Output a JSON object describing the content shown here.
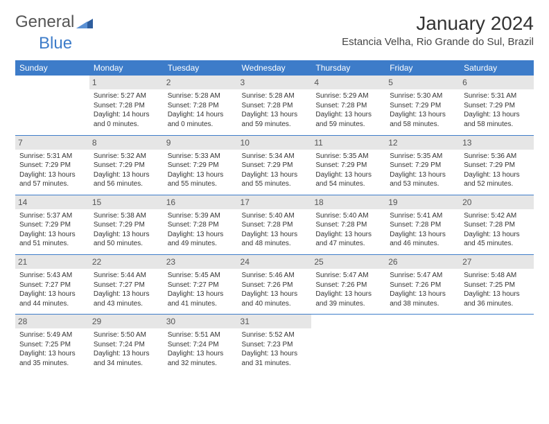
{
  "brand": {
    "text1": "General",
    "text2": "Blue",
    "text_color_1": "#555555",
    "text_color_2": "#3d7cc9",
    "icon_color": "#2e5e9e"
  },
  "title": "January 2024",
  "location": "Estancia Velha, Rio Grande do Sul, Brazil",
  "header_bg": "#3d7cc9",
  "header_fg": "#ffffff",
  "daynum_bg": "#e6e6e6",
  "divider_color": "#3d7cc9",
  "day_names": [
    "Sunday",
    "Monday",
    "Tuesday",
    "Wednesday",
    "Thursday",
    "Friday",
    "Saturday"
  ],
  "weeks": [
    [
      null,
      {
        "n": "1",
        "sr": "5:27 AM",
        "ss": "7:28 PM",
        "dl": "14 hours and 0 minutes."
      },
      {
        "n": "2",
        "sr": "5:28 AM",
        "ss": "7:28 PM",
        "dl": "14 hours and 0 minutes."
      },
      {
        "n": "3",
        "sr": "5:28 AM",
        "ss": "7:28 PM",
        "dl": "13 hours and 59 minutes."
      },
      {
        "n": "4",
        "sr": "5:29 AM",
        "ss": "7:28 PM",
        "dl": "13 hours and 59 minutes."
      },
      {
        "n": "5",
        "sr": "5:30 AM",
        "ss": "7:29 PM",
        "dl": "13 hours and 58 minutes."
      },
      {
        "n": "6",
        "sr": "5:31 AM",
        "ss": "7:29 PM",
        "dl": "13 hours and 58 minutes."
      }
    ],
    [
      {
        "n": "7",
        "sr": "5:31 AM",
        "ss": "7:29 PM",
        "dl": "13 hours and 57 minutes."
      },
      {
        "n": "8",
        "sr": "5:32 AM",
        "ss": "7:29 PM",
        "dl": "13 hours and 56 minutes."
      },
      {
        "n": "9",
        "sr": "5:33 AM",
        "ss": "7:29 PM",
        "dl": "13 hours and 55 minutes."
      },
      {
        "n": "10",
        "sr": "5:34 AM",
        "ss": "7:29 PM",
        "dl": "13 hours and 55 minutes."
      },
      {
        "n": "11",
        "sr": "5:35 AM",
        "ss": "7:29 PM",
        "dl": "13 hours and 54 minutes."
      },
      {
        "n": "12",
        "sr": "5:35 AM",
        "ss": "7:29 PM",
        "dl": "13 hours and 53 minutes."
      },
      {
        "n": "13",
        "sr": "5:36 AM",
        "ss": "7:29 PM",
        "dl": "13 hours and 52 minutes."
      }
    ],
    [
      {
        "n": "14",
        "sr": "5:37 AM",
        "ss": "7:29 PM",
        "dl": "13 hours and 51 minutes."
      },
      {
        "n": "15",
        "sr": "5:38 AM",
        "ss": "7:29 PM",
        "dl": "13 hours and 50 minutes."
      },
      {
        "n": "16",
        "sr": "5:39 AM",
        "ss": "7:28 PM",
        "dl": "13 hours and 49 minutes."
      },
      {
        "n": "17",
        "sr": "5:40 AM",
        "ss": "7:28 PM",
        "dl": "13 hours and 48 minutes."
      },
      {
        "n": "18",
        "sr": "5:40 AM",
        "ss": "7:28 PM",
        "dl": "13 hours and 47 minutes."
      },
      {
        "n": "19",
        "sr": "5:41 AM",
        "ss": "7:28 PM",
        "dl": "13 hours and 46 minutes."
      },
      {
        "n": "20",
        "sr": "5:42 AM",
        "ss": "7:28 PM",
        "dl": "13 hours and 45 minutes."
      }
    ],
    [
      {
        "n": "21",
        "sr": "5:43 AM",
        "ss": "7:27 PM",
        "dl": "13 hours and 44 minutes."
      },
      {
        "n": "22",
        "sr": "5:44 AM",
        "ss": "7:27 PM",
        "dl": "13 hours and 43 minutes."
      },
      {
        "n": "23",
        "sr": "5:45 AM",
        "ss": "7:27 PM",
        "dl": "13 hours and 41 minutes."
      },
      {
        "n": "24",
        "sr": "5:46 AM",
        "ss": "7:26 PM",
        "dl": "13 hours and 40 minutes."
      },
      {
        "n": "25",
        "sr": "5:47 AM",
        "ss": "7:26 PM",
        "dl": "13 hours and 39 minutes."
      },
      {
        "n": "26",
        "sr": "5:47 AM",
        "ss": "7:26 PM",
        "dl": "13 hours and 38 minutes."
      },
      {
        "n": "27",
        "sr": "5:48 AM",
        "ss": "7:25 PM",
        "dl": "13 hours and 36 minutes."
      }
    ],
    [
      {
        "n": "28",
        "sr": "5:49 AM",
        "ss": "7:25 PM",
        "dl": "13 hours and 35 minutes."
      },
      {
        "n": "29",
        "sr": "5:50 AM",
        "ss": "7:24 PM",
        "dl": "13 hours and 34 minutes."
      },
      {
        "n": "30",
        "sr": "5:51 AM",
        "ss": "7:24 PM",
        "dl": "13 hours and 32 minutes."
      },
      {
        "n": "31",
        "sr": "5:52 AM",
        "ss": "7:23 PM",
        "dl": "13 hours and 31 minutes."
      },
      null,
      null,
      null
    ]
  ],
  "labels": {
    "sunrise_prefix": "Sunrise: ",
    "sunset_prefix": "Sunset: ",
    "daylight_prefix": "Daylight: "
  }
}
